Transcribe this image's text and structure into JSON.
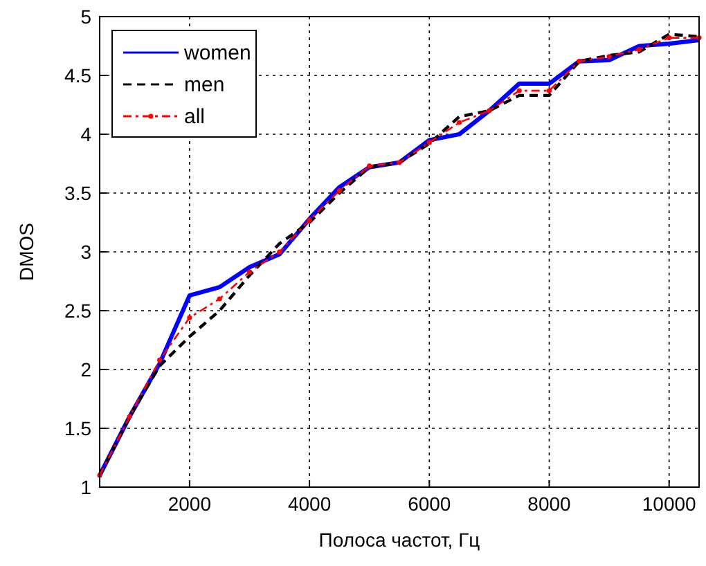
{
  "chart_data": {
    "type": "line",
    "xlabel": "Полоса частот, Гц",
    "ylabel": "DMOS",
    "x": [
      500,
      1000,
      1500,
      2000,
      2500,
      3000,
      3500,
      4000,
      4500,
      5000,
      5500,
      6000,
      6500,
      7000,
      7500,
      8000,
      8500,
      9000,
      9500,
      10000,
      10500
    ],
    "series": [
      {
        "name": "women",
        "color": "#0000ff",
        "line_style": "solid",
        "marker": "none",
        "values": [
          1.1,
          1.6,
          2.05,
          2.63,
          2.7,
          2.87,
          2.98,
          3.28,
          3.55,
          3.72,
          3.76,
          3.95,
          4.0,
          4.2,
          4.43,
          4.43,
          4.62,
          4.63,
          4.75,
          4.77,
          4.8
        ]
      },
      {
        "name": "men",
        "color": "#000000",
        "line_style": "dashed",
        "marker": "none",
        "values": [
          1.1,
          1.6,
          2.03,
          2.28,
          2.5,
          2.8,
          3.07,
          3.25,
          3.5,
          3.72,
          3.76,
          3.92,
          4.15,
          4.2,
          4.33,
          4.33,
          4.62,
          4.67,
          4.7,
          4.85,
          4.83
        ]
      },
      {
        "name": "all",
        "color": "#ff0000",
        "line_style": "dashdot",
        "marker": "circle",
        "values": [
          1.1,
          1.6,
          2.08,
          2.44,
          2.6,
          2.83,
          3.0,
          3.27,
          3.52,
          3.73,
          3.76,
          3.93,
          4.1,
          4.2,
          4.37,
          4.37,
          4.62,
          4.66,
          4.72,
          4.82,
          4.82
        ]
      }
    ],
    "xlim": [
      500,
      10500
    ],
    "xticks": [
      2000,
      4000,
      6000,
      8000,
      10000
    ],
    "ylim": [
      1,
      5
    ],
    "yticks": [
      1,
      1.5,
      2,
      2.5,
      3,
      3.5,
      4,
      4.5,
      5
    ],
    "grid": true,
    "legend": "top left"
  }
}
